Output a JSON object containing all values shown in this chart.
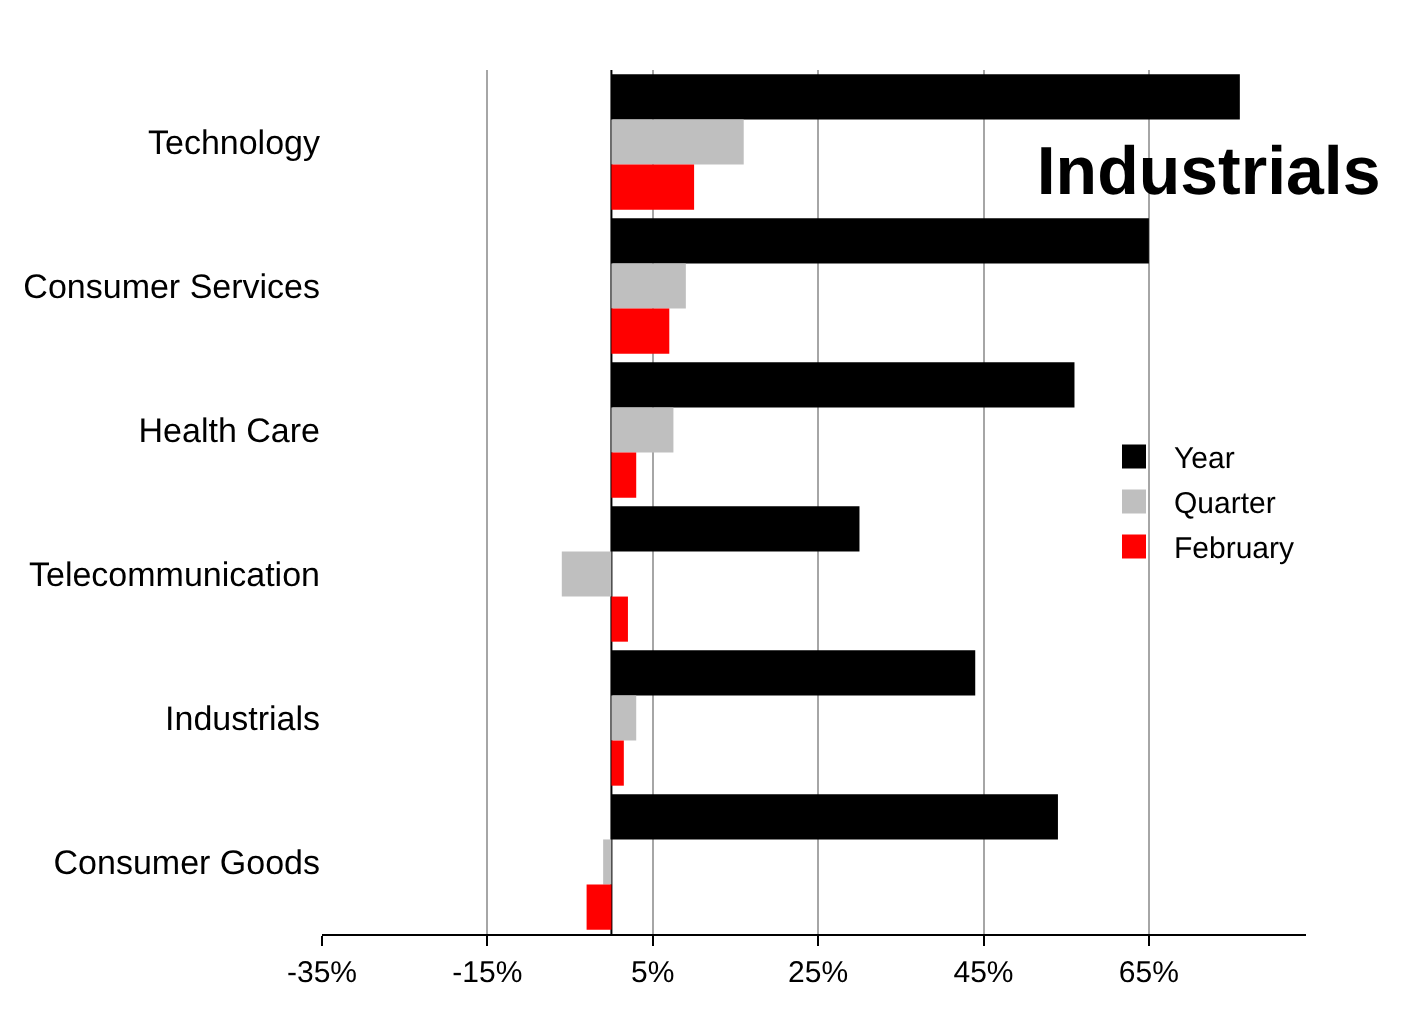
{
  "chart_data": {
    "type": "bar",
    "orientation": "horizontal",
    "title": "Industrials",
    "categories": [
      "Technology",
      "Consumer Services",
      "Health Care",
      "Telecommunication",
      "Industrials",
      "Consumer Goods"
    ],
    "series": [
      {
        "name": "Year",
        "color": "#000000",
        "values": [
          76,
          65,
          56,
          30,
          44,
          54
        ]
      },
      {
        "name": "Quarter",
        "color": "#bfbfbf",
        "values": [
          16,
          9,
          7.5,
          -6,
          3,
          -1
        ]
      },
      {
        "name": "February",
        "color": "#ff0000",
        "values": [
          10,
          7,
          3,
          2,
          1.5,
          -3
        ]
      }
    ],
    "xlim": [
      -35,
      84
    ],
    "xticks": [
      {
        "value": -35,
        "label": "-35%"
      },
      {
        "value": -15,
        "label": "-15%"
      },
      {
        "value": 5,
        "label": "5%"
      },
      {
        "value": 25,
        "label": "25%"
      },
      {
        "value": 45,
        "label": "45%"
      },
      {
        "value": 65,
        "label": "65%"
      }
    ],
    "grid": "x",
    "legend": "right"
  }
}
